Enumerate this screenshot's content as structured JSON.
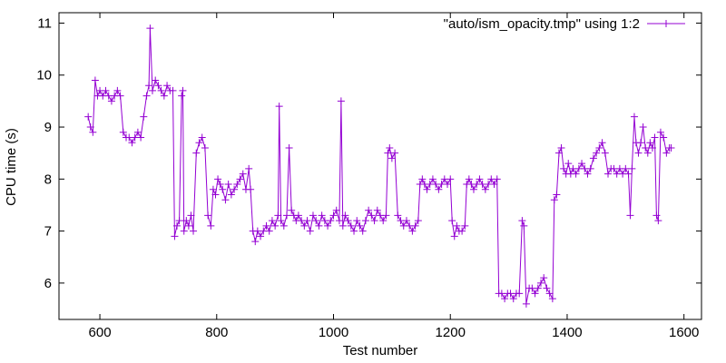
{
  "chart_data": {
    "type": "line",
    "title": "",
    "xlabel": "Test number",
    "ylabel": "CPU time (s)",
    "xlim": [
      530,
      1630
    ],
    "ylim": [
      5.3,
      11.2
    ],
    "xticks": [
      600,
      800,
      1000,
      1200,
      1400,
      1600
    ],
    "yticks": [
      6,
      7,
      8,
      9,
      10,
      11
    ],
    "grid": false,
    "legend": "top-right",
    "marker": "plus",
    "series": [
      {
        "name": "\"auto/ism_opacity.tmp\" using 1:2",
        "color": "#9400d3",
        "points": [
          [
            580,
            9.2
          ],
          [
            584,
            9.0
          ],
          [
            588,
            8.9
          ],
          [
            592,
            9.9
          ],
          [
            596,
            9.6
          ],
          [
            600,
            9.7
          ],
          [
            605,
            9.6
          ],
          [
            610,
            9.7
          ],
          [
            615,
            9.6
          ],
          [
            620,
            9.5
          ],
          [
            625,
            9.6
          ],
          [
            630,
            9.7
          ],
          [
            635,
            9.6
          ],
          [
            640,
            8.9
          ],
          [
            645,
            8.8
          ],
          [
            650,
            8.8
          ],
          [
            655,
            8.7
          ],
          [
            660,
            8.8
          ],
          [
            665,
            8.9
          ],
          [
            670,
            8.8
          ],
          [
            675,
            9.2
          ],
          [
            680,
            9.6
          ],
          [
            684,
            9.8
          ],
          [
            686,
            10.9
          ],
          [
            690,
            9.7
          ],
          [
            695,
            9.9
          ],
          [
            700,
            9.8
          ],
          [
            705,
            9.7
          ],
          [
            710,
            9.6
          ],
          [
            715,
            9.8
          ],
          [
            720,
            9.7
          ],
          [
            725,
            9.7
          ],
          [
            728,
            6.9
          ],
          [
            732,
            7.1
          ],
          [
            736,
            7.2
          ],
          [
            740,
            9.6
          ],
          [
            742,
            9.7
          ],
          [
            744,
            7.0
          ],
          [
            748,
            7.2
          ],
          [
            752,
            7.1
          ],
          [
            756,
            7.3
          ],
          [
            760,
            7.0
          ],
          [
            765,
            8.5
          ],
          [
            770,
            8.7
          ],
          [
            775,
            8.8
          ],
          [
            780,
            8.6
          ],
          [
            785,
            7.3
          ],
          [
            790,
            7.1
          ],
          [
            794,
            7.8
          ],
          [
            798,
            7.7
          ],
          [
            802,
            8.0
          ],
          [
            806,
            7.9
          ],
          [
            810,
            7.8
          ],
          [
            815,
            7.6
          ],
          [
            820,
            7.9
          ],
          [
            825,
            7.7
          ],
          [
            830,
            7.8
          ],
          [
            835,
            7.9
          ],
          [
            840,
            8.0
          ],
          [
            845,
            8.1
          ],
          [
            850,
            7.8
          ],
          [
            855,
            8.2
          ],
          [
            858,
            7.8
          ],
          [
            862,
            7.0
          ],
          [
            866,
            6.8
          ],
          [
            870,
            7.0
          ],
          [
            875,
            6.9
          ],
          [
            880,
            7.0
          ],
          [
            885,
            7.1
          ],
          [
            890,
            7.0
          ],
          [
            895,
            7.2
          ],
          [
            900,
            7.1
          ],
          [
            905,
            7.3
          ],
          [
            907,
            9.4
          ],
          [
            910,
            7.2
          ],
          [
            915,
            7.1
          ],
          [
            920,
            7.3
          ],
          [
            924,
            8.6
          ],
          [
            928,
            7.4
          ],
          [
            932,
            7.3
          ],
          [
            936,
            7.2
          ],
          [
            940,
            7.3
          ],
          [
            945,
            7.2
          ],
          [
            950,
            7.1
          ],
          [
            955,
            7.2
          ],
          [
            960,
            7.0
          ],
          [
            965,
            7.3
          ],
          [
            970,
            7.2
          ],
          [
            975,
            7.1
          ],
          [
            980,
            7.3
          ],
          [
            985,
            7.2
          ],
          [
            990,
            7.1
          ],
          [
            995,
            7.2
          ],
          [
            1000,
            7.3
          ],
          [
            1005,
            7.4
          ],
          [
            1010,
            7.2
          ],
          [
            1013,
            9.5
          ],
          [
            1016,
            7.1
          ],
          [
            1020,
            7.3
          ],
          [
            1025,
            7.2
          ],
          [
            1030,
            7.1
          ],
          [
            1035,
            7.0
          ],
          [
            1040,
            7.2
          ],
          [
            1045,
            7.1
          ],
          [
            1050,
            7.0
          ],
          [
            1055,
            7.2
          ],
          [
            1060,
            7.4
          ],
          [
            1065,
            7.3
          ],
          [
            1070,
            7.2
          ],
          [
            1075,
            7.4
          ],
          [
            1080,
            7.3
          ],
          [
            1085,
            7.2
          ],
          [
            1090,
            7.3
          ],
          [
            1093,
            8.5
          ],
          [
            1096,
            8.6
          ],
          [
            1100,
            8.4
          ],
          [
            1105,
            8.5
          ],
          [
            1110,
            7.3
          ],
          [
            1115,
            7.2
          ],
          [
            1120,
            7.1
          ],
          [
            1125,
            7.2
          ],
          [
            1130,
            7.1
          ],
          [
            1135,
            7.0
          ],
          [
            1140,
            7.1
          ],
          [
            1145,
            7.2
          ],
          [
            1148,
            7.9
          ],
          [
            1152,
            8.0
          ],
          [
            1156,
            7.9
          ],
          [
            1160,
            7.8
          ],
          [
            1165,
            7.9
          ],
          [
            1170,
            8.0
          ],
          [
            1175,
            7.9
          ],
          [
            1180,
            7.8
          ],
          [
            1185,
            7.9
          ],
          [
            1190,
            8.0
          ],
          [
            1195,
            7.9
          ],
          [
            1200,
            8.0
          ],
          [
            1203,
            7.2
          ],
          [
            1207,
            6.9
          ],
          [
            1211,
            7.1
          ],
          [
            1215,
            7.0
          ],
          [
            1220,
            7.0
          ],
          [
            1225,
            7.1
          ],
          [
            1228,
            7.9
          ],
          [
            1232,
            8.0
          ],
          [
            1236,
            7.9
          ],
          [
            1240,
            7.8
          ],
          [
            1245,
            7.9
          ],
          [
            1250,
            8.0
          ],
          [
            1255,
            7.9
          ],
          [
            1260,
            7.8
          ],
          [
            1265,
            7.9
          ],
          [
            1270,
            8.0
          ],
          [
            1275,
            7.9
          ],
          [
            1280,
            8.0
          ],
          [
            1283,
            5.8
          ],
          [
            1288,
            5.8
          ],
          [
            1293,
            5.7
          ],
          [
            1298,
            5.8
          ],
          [
            1303,
            5.8
          ],
          [
            1308,
            5.7
          ],
          [
            1313,
            5.8
          ],
          [
            1318,
            5.8
          ],
          [
            1323,
            7.2
          ],
          [
            1326,
            7.1
          ],
          [
            1330,
            5.6
          ],
          [
            1335,
            5.9
          ],
          [
            1340,
            5.9
          ],
          [
            1345,
            5.8
          ],
          [
            1350,
            5.9
          ],
          [
            1355,
            6.0
          ],
          [
            1360,
            6.1
          ],
          [
            1365,
            5.9
          ],
          [
            1370,
            5.8
          ],
          [
            1375,
            5.7
          ],
          [
            1378,
            7.6
          ],
          [
            1382,
            7.7
          ],
          [
            1386,
            8.5
          ],
          [
            1390,
            8.6
          ],
          [
            1394,
            8.2
          ],
          [
            1398,
            8.1
          ],
          [
            1402,
            8.3
          ],
          [
            1406,
            8.1
          ],
          [
            1410,
            8.2
          ],
          [
            1415,
            8.1
          ],
          [
            1420,
            8.2
          ],
          [
            1425,
            8.3
          ],
          [
            1430,
            8.2
          ],
          [
            1435,
            8.1
          ],
          [
            1440,
            8.2
          ],
          [
            1445,
            8.4
          ],
          [
            1450,
            8.5
          ],
          [
            1455,
            8.6
          ],
          [
            1460,
            8.7
          ],
          [
            1465,
            8.5
          ],
          [
            1470,
            8.1
          ],
          [
            1475,
            8.2
          ],
          [
            1480,
            8.2
          ],
          [
            1485,
            8.1
          ],
          [
            1490,
            8.2
          ],
          [
            1495,
            8.1
          ],
          [
            1500,
            8.2
          ],
          [
            1505,
            8.1
          ],
          [
            1508,
            7.3
          ],
          [
            1511,
            8.2
          ],
          [
            1515,
            9.2
          ],
          [
            1518,
            8.7
          ],
          [
            1522,
            8.5
          ],
          [
            1526,
            8.7
          ],
          [
            1530,
            9.0
          ],
          [
            1534,
            8.6
          ],
          [
            1538,
            8.5
          ],
          [
            1542,
            8.7
          ],
          [
            1546,
            8.6
          ],
          [
            1550,
            8.8
          ],
          [
            1553,
            7.3
          ],
          [
            1556,
            7.2
          ],
          [
            1560,
            8.9
          ],
          [
            1565,
            8.8
          ],
          [
            1570,
            8.5
          ],
          [
            1575,
            8.6
          ],
          [
            1578,
            8.6
          ]
        ]
      }
    ]
  }
}
